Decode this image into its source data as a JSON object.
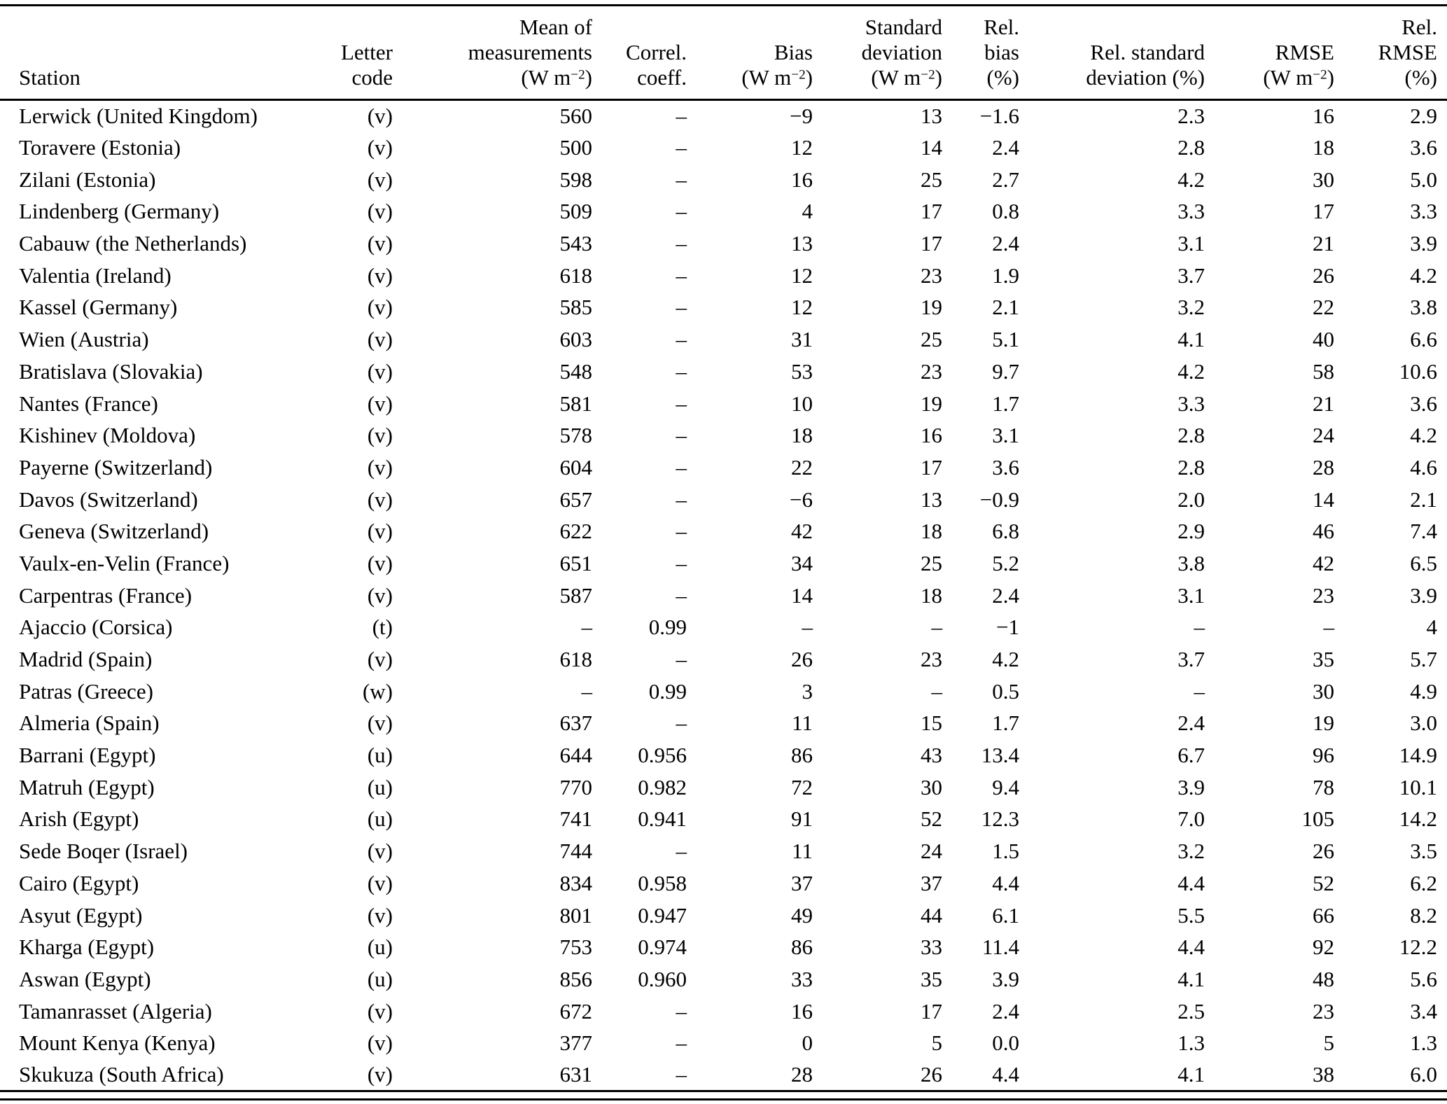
{
  "table": {
    "columns": [
      {
        "id": "station",
        "align": "left",
        "header_lines": [
          "Station"
        ]
      },
      {
        "id": "letter-code",
        "align": "right",
        "header_lines": [
          "Letter",
          "code"
        ]
      },
      {
        "id": "mean-of-measurements",
        "align": "right",
        "header_lines": [
          "Mean of",
          "measurements",
          "(W m⁻²)"
        ]
      },
      {
        "id": "correl-coeff",
        "align": "right",
        "header_lines": [
          "Correl.",
          "coeff."
        ]
      },
      {
        "id": "bias",
        "align": "right",
        "header_lines": [
          "Bias",
          "(W m⁻²)"
        ]
      },
      {
        "id": "standard-deviation",
        "align": "right",
        "header_lines": [
          "Standard",
          "deviation",
          "(W m⁻²)"
        ]
      },
      {
        "id": "rel-bias",
        "align": "right",
        "header_lines": [
          "Rel.",
          "bias",
          "(%)"
        ]
      },
      {
        "id": "rel-standard-deviation",
        "align": "right",
        "header_lines": [
          "Rel. standard",
          "deviation (%)"
        ]
      },
      {
        "id": "rmse",
        "align": "right",
        "header_lines": [
          "RMSE",
          "(W m⁻²)"
        ]
      },
      {
        "id": "rel-rmse",
        "align": "right",
        "header_lines": [
          "Rel.",
          "RMSE",
          "(%)"
        ]
      }
    ],
    "rows": [
      [
        "Lerwick (United Kingdom)",
        "(v)",
        "560",
        "–",
        "−9",
        "13",
        "−1.6",
        "2.3",
        "16",
        "2.9"
      ],
      [
        "Toravere (Estonia)",
        "(v)",
        "500",
        "–",
        "12",
        "14",
        "2.4",
        "2.8",
        "18",
        "3.6"
      ],
      [
        "Zilani (Estonia)",
        "(v)",
        "598",
        "–",
        "16",
        "25",
        "2.7",
        "4.2",
        "30",
        "5.0"
      ],
      [
        "Lindenberg (Germany)",
        "(v)",
        "509",
        "–",
        "4",
        "17",
        "0.8",
        "3.3",
        "17",
        "3.3"
      ],
      [
        "Cabauw (the Netherlands)",
        "(v)",
        "543",
        "–",
        "13",
        "17",
        "2.4",
        "3.1",
        "21",
        "3.9"
      ],
      [
        "Valentia (Ireland)",
        "(v)",
        "618",
        "–",
        "12",
        "23",
        "1.9",
        "3.7",
        "26",
        "4.2"
      ],
      [
        "Kassel (Germany)",
        "(v)",
        "585",
        "–",
        "12",
        "19",
        "2.1",
        "3.2",
        "22",
        "3.8"
      ],
      [
        "Wien (Austria)",
        "(v)",
        "603",
        "–",
        "31",
        "25",
        "5.1",
        "4.1",
        "40",
        "6.6"
      ],
      [
        "Bratislava (Slovakia)",
        "(v)",
        "548",
        "–",
        "53",
        "23",
        "9.7",
        "4.2",
        "58",
        "10.6"
      ],
      [
        "Nantes (France)",
        "(v)",
        "581",
        "–",
        "10",
        "19",
        "1.7",
        "3.3",
        "21",
        "3.6"
      ],
      [
        "Kishinev (Moldova)",
        "(v)",
        "578",
        "–",
        "18",
        "16",
        "3.1",
        "2.8",
        "24",
        "4.2"
      ],
      [
        "Payerne (Switzerland)",
        "(v)",
        "604",
        "–",
        "22",
        "17",
        "3.6",
        "2.8",
        "28",
        "4.6"
      ],
      [
        "Davos (Switzerland)",
        "(v)",
        "657",
        "–",
        "−6",
        "13",
        "−0.9",
        "2.0",
        "14",
        "2.1"
      ],
      [
        "Geneva (Switzerland)",
        "(v)",
        "622",
        "–",
        "42",
        "18",
        "6.8",
        "2.9",
        "46",
        "7.4"
      ],
      [
        "Vaulx-en-Velin (France)",
        "(v)",
        "651",
        "–",
        "34",
        "25",
        "5.2",
        "3.8",
        "42",
        "6.5"
      ],
      [
        "Carpentras (France)",
        "(v)",
        "587",
        "–",
        "14",
        "18",
        "2.4",
        "3.1",
        "23",
        "3.9"
      ],
      [
        "Ajaccio (Corsica)",
        "(t)",
        "–",
        "0.99",
        "–",
        "–",
        "−1",
        "–",
        "–",
        "4"
      ],
      [
        "Madrid (Spain)",
        "(v)",
        "618",
        "–",
        "26",
        "23",
        "4.2",
        "3.7",
        "35",
        "5.7"
      ],
      [
        "Patras (Greece)",
        "(w)",
        "–",
        "0.99",
        "3",
        "–",
        "0.5",
        "–",
        "30",
        "4.9"
      ],
      [
        "Almeria (Spain)",
        "(v)",
        "637",
        "–",
        "11",
        "15",
        "1.7",
        "2.4",
        "19",
        "3.0"
      ],
      [
        "Barrani (Egypt)",
        "(u)",
        "644",
        "0.956",
        "86",
        "43",
        "13.4",
        "6.7",
        "96",
        "14.9"
      ],
      [
        "Matruh (Egypt)",
        "(u)",
        "770",
        "0.982",
        "72",
        "30",
        "9.4",
        "3.9",
        "78",
        "10.1"
      ],
      [
        "Arish (Egypt)",
        "(u)",
        "741",
        "0.941",
        "91",
        "52",
        "12.3",
        "7.0",
        "105",
        "14.2"
      ],
      [
        "Sede Boqer (Israel)",
        "(v)",
        "744",
        "–",
        "11",
        "24",
        "1.5",
        "3.2",
        "26",
        "3.5"
      ],
      [
        "Cairo (Egypt)",
        "(v)",
        "834",
        "0.958",
        "37",
        "37",
        "4.4",
        "4.4",
        "52",
        "6.2"
      ],
      [
        "Asyut (Egypt)",
        "(v)",
        "801",
        "0.947",
        "49",
        "44",
        "6.1",
        "5.5",
        "66",
        "8.2"
      ],
      [
        "Kharga (Egypt)",
        "(u)",
        "753",
        "0.974",
        "86",
        "33",
        "11.4",
        "4.4",
        "92",
        "12.2"
      ],
      [
        "Aswan (Egypt)",
        "(u)",
        "856",
        "0.960",
        "33",
        "35",
        "3.9",
        "4.1",
        "48",
        "5.6"
      ],
      [
        "Tamanrasset (Algeria)",
        "(v)",
        "672",
        "–",
        "16",
        "17",
        "2.4",
        "2.5",
        "23",
        "3.4"
      ],
      [
        "Mount Kenya (Kenya)",
        "(v)",
        "377",
        "–",
        "0",
        "5",
        "0.0",
        "1.3",
        "5",
        "1.3"
      ],
      [
        "Skukuza (South Africa)",
        "(v)",
        "631",
        "–",
        "28",
        "26",
        "4.4",
        "4.1",
        "38",
        "6.0"
      ]
    ]
  }
}
